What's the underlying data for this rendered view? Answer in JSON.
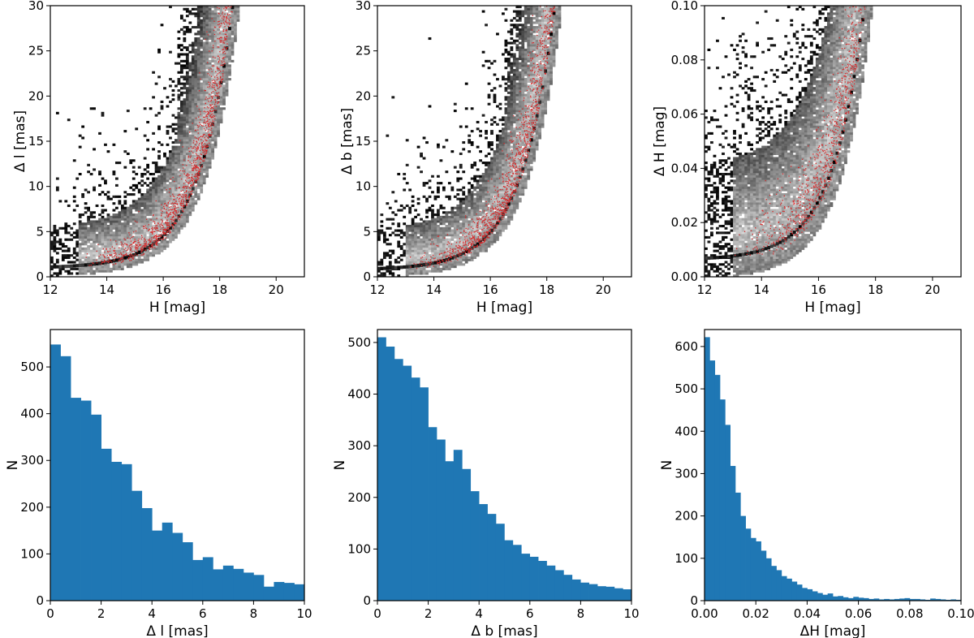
{
  "figure": {
    "colors": {
      "bar": "#1f77b4",
      "points": "#d62728",
      "density_low": "#f2f2f2",
      "density_high": "#000000",
      "axes": "#000000"
    }
  },
  "chart_data": [
    {
      "id": "scatter-dl",
      "type": "heatmap",
      "title": "",
      "xlabel": "H [mag]",
      "ylabel": "Δ l [mas]",
      "xlim": [
        12,
        21
      ],
      "ylim": [
        0,
        30
      ],
      "xticks": [
        "12",
        "14",
        "16",
        "18",
        "20"
      ],
      "yticks": [
        "0",
        "5",
        "10",
        "15",
        "20",
        "25",
        "30"
      ],
      "overlay": "red scatter points",
      "envelope": {
        "floor": 0.9,
        "amplitude": 0.12,
        "scale_mag": 0.85,
        "spread": 1.5,
        "outlier_bias": 0.4
      }
    },
    {
      "id": "scatter-db",
      "type": "heatmap",
      "title": "",
      "xlabel": "H [mag]",
      "ylabel": "Δ b [mas]",
      "xlim": [
        12,
        21
      ],
      "ylim": [
        0,
        30
      ],
      "xticks": [
        "12",
        "14",
        "16",
        "18",
        "20"
      ],
      "yticks": [
        "0",
        "5",
        "10",
        "15",
        "20",
        "25",
        "30"
      ],
      "overlay": "red scatter points",
      "envelope": {
        "floor": 0.7,
        "amplitude": 0.14,
        "scale_mag": 0.85,
        "spread": 1.5,
        "outlier_bias": 0.4
      }
    },
    {
      "id": "scatter-dh",
      "type": "heatmap",
      "title": "",
      "xlabel": "H [mag]",
      "ylabel": "Δ H [mag]",
      "xlim": [
        12,
        21
      ],
      "ylim": [
        0,
        0.1
      ],
      "xticks": [
        "12",
        "14",
        "16",
        "18",
        "20"
      ],
      "yticks": [
        "0.00",
        "0.02",
        "0.04",
        "0.06",
        "0.08",
        "0.10"
      ],
      "overlay": "red scatter points",
      "envelope": {
        "floor": 0.006,
        "amplitude": 0.0006,
        "scale_mag": 0.9,
        "spread": 0.012,
        "outlier_bias": 0.4
      }
    },
    {
      "id": "hist-dl",
      "type": "bar",
      "title": "",
      "xlabel": "Δ l [mas]",
      "ylabel": "N",
      "xlim": [
        0,
        10
      ],
      "ylim": [
        0,
        580
      ],
      "xticks": [
        "0",
        "2",
        "4",
        "6",
        "8",
        "10"
      ],
      "yticks": [
        "0",
        "100",
        "200",
        "300",
        "400",
        "500"
      ],
      "bin_edges_start": 0,
      "bin_width": 0.4,
      "values": [
        548,
        523,
        434,
        428,
        398,
        325,
        297,
        292,
        235,
        198,
        150,
        167,
        145,
        125,
        87,
        93,
        67,
        75,
        68,
        60,
        55,
        30,
        40,
        38,
        35
      ]
    },
    {
      "id": "hist-db",
      "type": "bar",
      "title": "",
      "xlabel": "Δ b [mas]",
      "ylabel": "N",
      "xlim": [
        0,
        10
      ],
      "ylim": [
        0,
        525
      ],
      "xticks": [
        "0",
        "2",
        "4",
        "6",
        "8",
        "10"
      ],
      "yticks": [
        "0",
        "100",
        "200",
        "300",
        "400",
        "500"
      ],
      "bin_edges_start": 0,
      "bin_width": 0.333,
      "values": [
        510,
        492,
        468,
        455,
        432,
        413,
        336,
        312,
        270,
        292,
        255,
        212,
        187,
        168,
        149,
        117,
        108,
        91,
        85,
        77,
        68,
        59,
        50,
        41,
        35,
        32,
        28,
        27,
        24,
        22
      ]
    },
    {
      "id": "hist-dh",
      "type": "bar",
      "title": "",
      "xlabel": "ΔH [mag]",
      "ylabel": "N",
      "xlim": [
        0,
        0.1
      ],
      "ylim": [
        0,
        640
      ],
      "xticks": [
        "0.00",
        "0.02",
        "0.04",
        "0.06",
        "0.08",
        "0.10"
      ],
      "yticks": [
        "0",
        "100",
        "200",
        "300",
        "400",
        "500",
        "600"
      ],
      "bin_edges_start": 0,
      "bin_width": 0.002,
      "values": [
        622,
        567,
        533,
        475,
        415,
        318,
        255,
        200,
        170,
        148,
        140,
        118,
        100,
        82,
        72,
        58,
        52,
        45,
        38,
        30,
        27,
        22,
        18,
        14,
        17,
        10,
        11,
        8,
        6,
        9,
        7,
        6,
        4,
        5,
        3,
        4,
        3,
        4,
        5,
        6,
        4,
        4,
        3,
        2,
        5,
        4,
        3,
        2,
        3,
        2
      ]
    }
  ]
}
